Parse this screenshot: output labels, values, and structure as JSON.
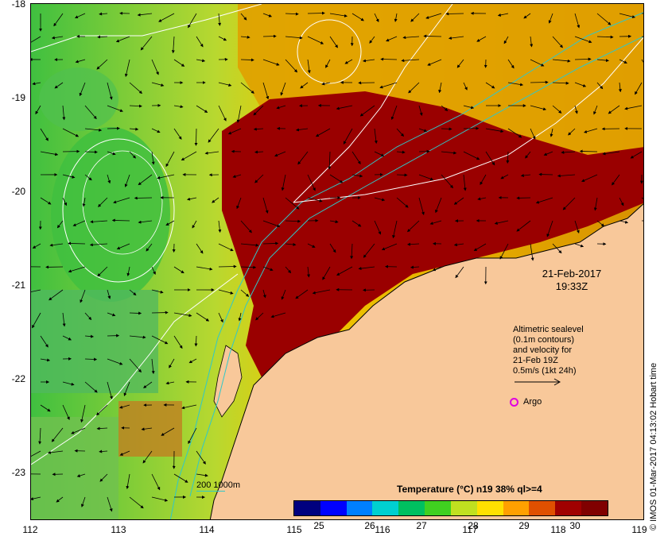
{
  "map": {
    "y_ticks": [
      "-18",
      "-19",
      "-20",
      "-21",
      "-22",
      "-23"
    ],
    "x_ticks": [
      "112",
      "113",
      "114",
      "115",
      "116",
      "117",
      "118",
      "119"
    ],
    "y_range": [
      -23.5,
      -18
    ],
    "x_range": [
      112,
      119
    ],
    "land_color": "#f8c89a",
    "contour_color": "#ffffff",
    "isobath_color": "#30c8c8"
  },
  "timestamp": {
    "date": "21-Feb-2017",
    "time": "19:33Z"
  },
  "legend": {
    "line1": "Altimetric sealevel",
    "line2": "(0.1m contours)",
    "line3": "and velocity for",
    "line4": "21-Feb 19Z",
    "line5": "0.5m/s (1kt 24h)",
    "argo_label": "Argo",
    "argo_color": "#e000e0",
    "isobath_label": "200  1000m"
  },
  "colorbar": {
    "title": "Temperature (°C) n19 38% ql>=4",
    "ticks": [
      "25",
      "26",
      "27",
      "28",
      "29",
      "30"
    ],
    "range": [
      24.5,
      30.6
    ],
    "colors": [
      "#00007f",
      "#0000ff",
      "#0080ff",
      "#00d0d0",
      "#00c060",
      "#40d020",
      "#c0e020",
      "#ffe000",
      "#ffa000",
      "#e05000",
      "#a00000",
      "#800000"
    ]
  },
  "credit": "© IMOS 01-Mar-2017 04:13:02 Hobart time"
}
